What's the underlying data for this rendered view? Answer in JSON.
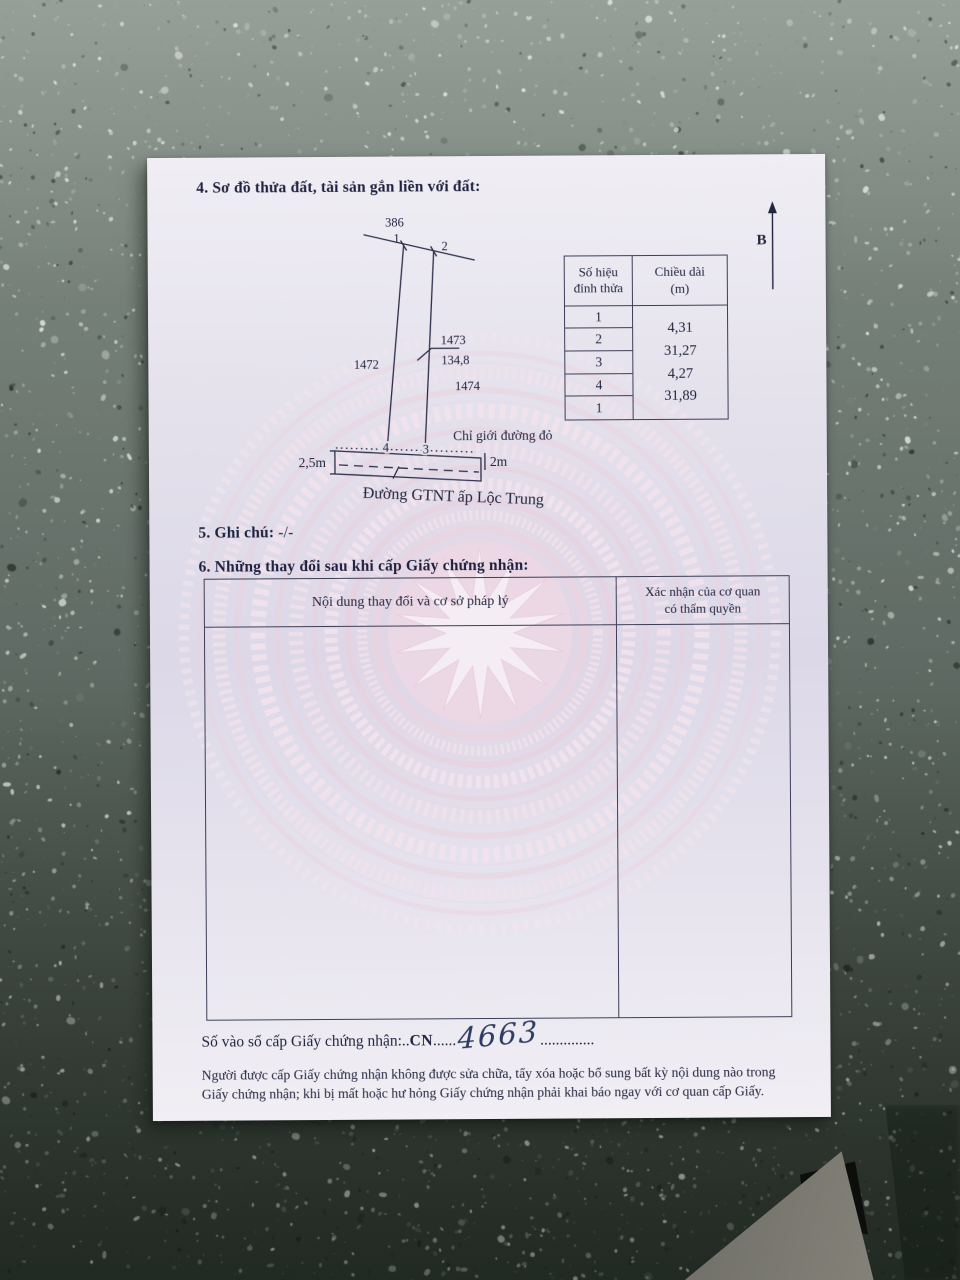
{
  "page": {
    "section4": {
      "heading": "4. Sơ đồ thửa đất, tài sản gắn liền với đất:"
    },
    "diagram": {
      "adjacent_parcel_top": "386",
      "vertex1": "1",
      "vertex2": "2",
      "vertex3": "3",
      "vertex4": "4",
      "parcel_left": "1472",
      "parcel_number": "1473",
      "parcel_area": "134,8",
      "parcel_right": "1474",
      "red_line_label": "Chỉ giới đường đỏ",
      "road_width_left": "2,5m",
      "road_width_right": "2m",
      "road_name": "Đường GTNT ấp Lộc Trung",
      "north_label": "B"
    },
    "vertex_table": {
      "col1_header_line1": "Số hiệu",
      "col1_header_line2": "đỉnh thửa",
      "col2_header_line1": "Chiều dài",
      "col2_header_line2": "(m)",
      "vertices": [
        "1",
        "2",
        "3",
        "4",
        "1"
      ],
      "lengths": [
        "4,31",
        "31,27",
        "4,27",
        "31,89"
      ]
    },
    "section5": {
      "heading": "5. Ghi chú:",
      "value": "-/-"
    },
    "section6": {
      "heading": "6. Những thay đổi sau khi cấp Giấy chứng nhận:",
      "col1_header": "Nội dung thay đổi và cơ sở pháp lý",
      "col2_header_line1": "Xác nhận của cơ quan",
      "col2_header_line2": "có thẩm quyền"
    },
    "registry": {
      "label": "Số vào sổ cấp Giấy chứng nhận:..",
      "code": "CN",
      "dots_mid": "......",
      "number_handwritten": "4663",
      "dots_end": ".............."
    },
    "footer": {
      "line1": "Người được cấp Giấy chứng nhận không được sửa chữa, tẩy xóa hoặc bổ sung bất kỳ nội dung nào trong",
      "line2": "Giấy chứng nhận; khi bị mất hoặc hư hỏng Giấy chứng nhận phải khai báo ngay với cơ quan cấp Giấy."
    },
    "colors": {
      "paper": "#e7e4ee",
      "ink": "#23243f",
      "watermark_pink": "#eacfdd",
      "handwriting": "#2e3c63"
    }
  }
}
